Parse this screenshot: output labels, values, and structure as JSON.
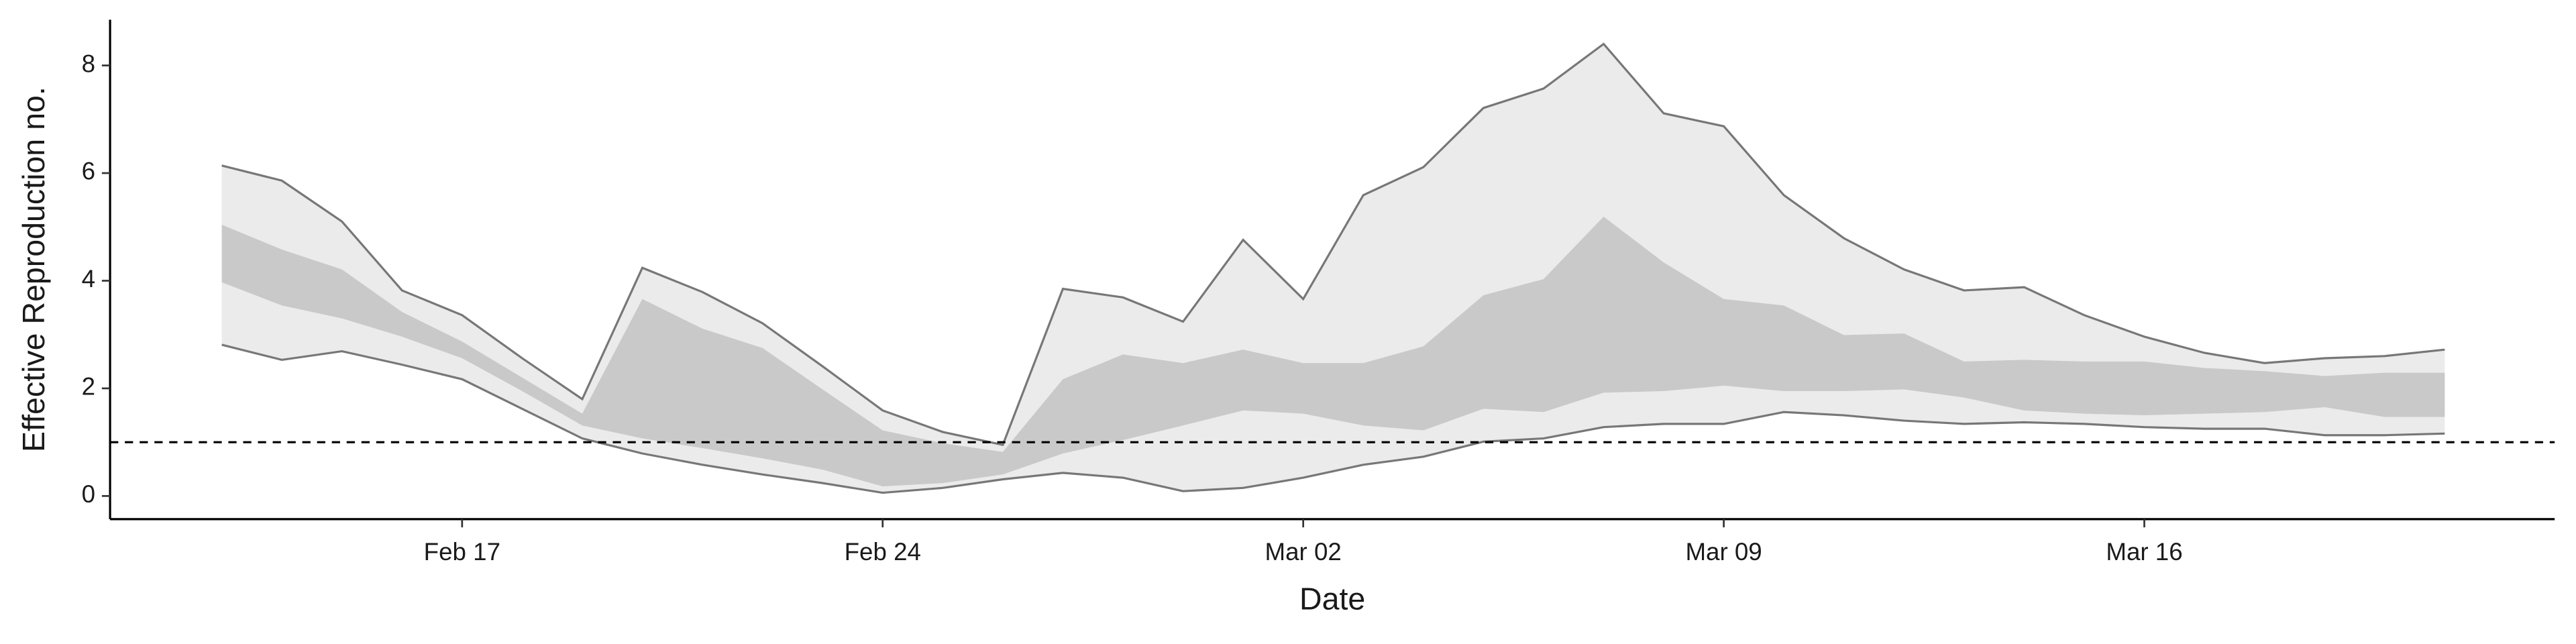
{
  "chart_data": {
    "type": "band",
    "x_label": "Date",
    "y_label": "Effective Reproduction no.",
    "categories": [
      "Feb 13",
      "Feb 14",
      "Feb 15",
      "Feb 16",
      "Feb 17",
      "Feb 18",
      "Feb 19",
      "Feb 20",
      "Feb 21",
      "Feb 22",
      "Feb 23",
      "Feb 24",
      "Feb 25",
      "Feb 26",
      "Feb 27",
      "Feb 28",
      "Feb 29",
      "Mar 01",
      "Mar 02",
      "Mar 03",
      "Mar 04",
      "Mar 05",
      "Mar 06",
      "Mar 07",
      "Mar 08",
      "Mar 09",
      "Mar 10",
      "Mar 11",
      "Mar 12",
      "Mar 13",
      "Mar 14",
      "Mar 15",
      "Mar 16",
      "Mar 17",
      "Mar 18",
      "Mar 19",
      "Mar 20",
      "Mar 21"
    ],
    "xticks": [
      "Feb 17",
      "Feb 24",
      "Mar 02",
      "Mar 09",
      "Mar 16"
    ],
    "band_outer": {
      "color": "#ebebeb",
      "line_color": "#777777",
      "upper": [
        6.14,
        5.86,
        5.1,
        3.82,
        3.36,
        2.56,
        1.8,
        4.24,
        3.79,
        3.21,
        2.41,
        1.59,
        1.19,
        0.95,
        3.85,
        3.69,
        3.24,
        4.76,
        3.66,
        5.59,
        6.11,
        7.21,
        7.57,
        8.4,
        7.11,
        6.87,
        5.59,
        4.79,
        4.21,
        3.82,
        3.88,
        3.36,
        2.96,
        2.66,
        2.47,
        2.56,
        2.6,
        2.72
      ],
      "lower": [
        2.81,
        2.53,
        2.69,
        2.44,
        2.17,
        1.62,
        1.07,
        0.79,
        0.58,
        0.4,
        0.24,
        0.06,
        0.15,
        0.31,
        0.43,
        0.34,
        0.09,
        0.15,
        0.34,
        0.58,
        0.73,
        1.01,
        1.07,
        1.28,
        1.34,
        1.34,
        1.56,
        1.5,
        1.4,
        1.34,
        1.37,
        1.34,
        1.28,
        1.25,
        1.25,
        1.13,
        1.13,
        1.16
      ]
    },
    "band_inner": {
      "color": "#c9c9c9",
      "upper": [
        5.04,
        4.58,
        4.21,
        3.42,
        2.87,
        2.2,
        1.53,
        3.66,
        3.11,
        2.75,
        1.98,
        1.22,
        0.98,
        0.82,
        2.17,
        2.63,
        2.47,
        2.72,
        2.47,
        2.47,
        2.78,
        3.73,
        4.03,
        5.19,
        4.34,
        3.66,
        3.54,
        2.99,
        3.02,
        2.5,
        2.53,
        2.5,
        2.5,
        2.38,
        2.32,
        2.23,
        2.29,
        2.29
      ],
      "lower": [
        3.97,
        3.54,
        3.3,
        2.96,
        2.56,
        1.95,
        1.31,
        1.07,
        0.89,
        0.7,
        0.49,
        0.18,
        0.24,
        0.4,
        0.79,
        1.04,
        1.31,
        1.59,
        1.53,
        1.31,
        1.22,
        1.62,
        1.56,
        1.92,
        1.95,
        2.05,
        1.95,
        1.95,
        1.98,
        1.83,
        1.59,
        1.53,
        1.5,
        1.53,
        1.56,
        1.65,
        1.47,
        1.47
      ]
    },
    "hline": 1,
    "ylim": [
      -0.43,
      8.85
    ],
    "yticks": [
      0,
      2,
      4,
      6,
      8
    ]
  }
}
